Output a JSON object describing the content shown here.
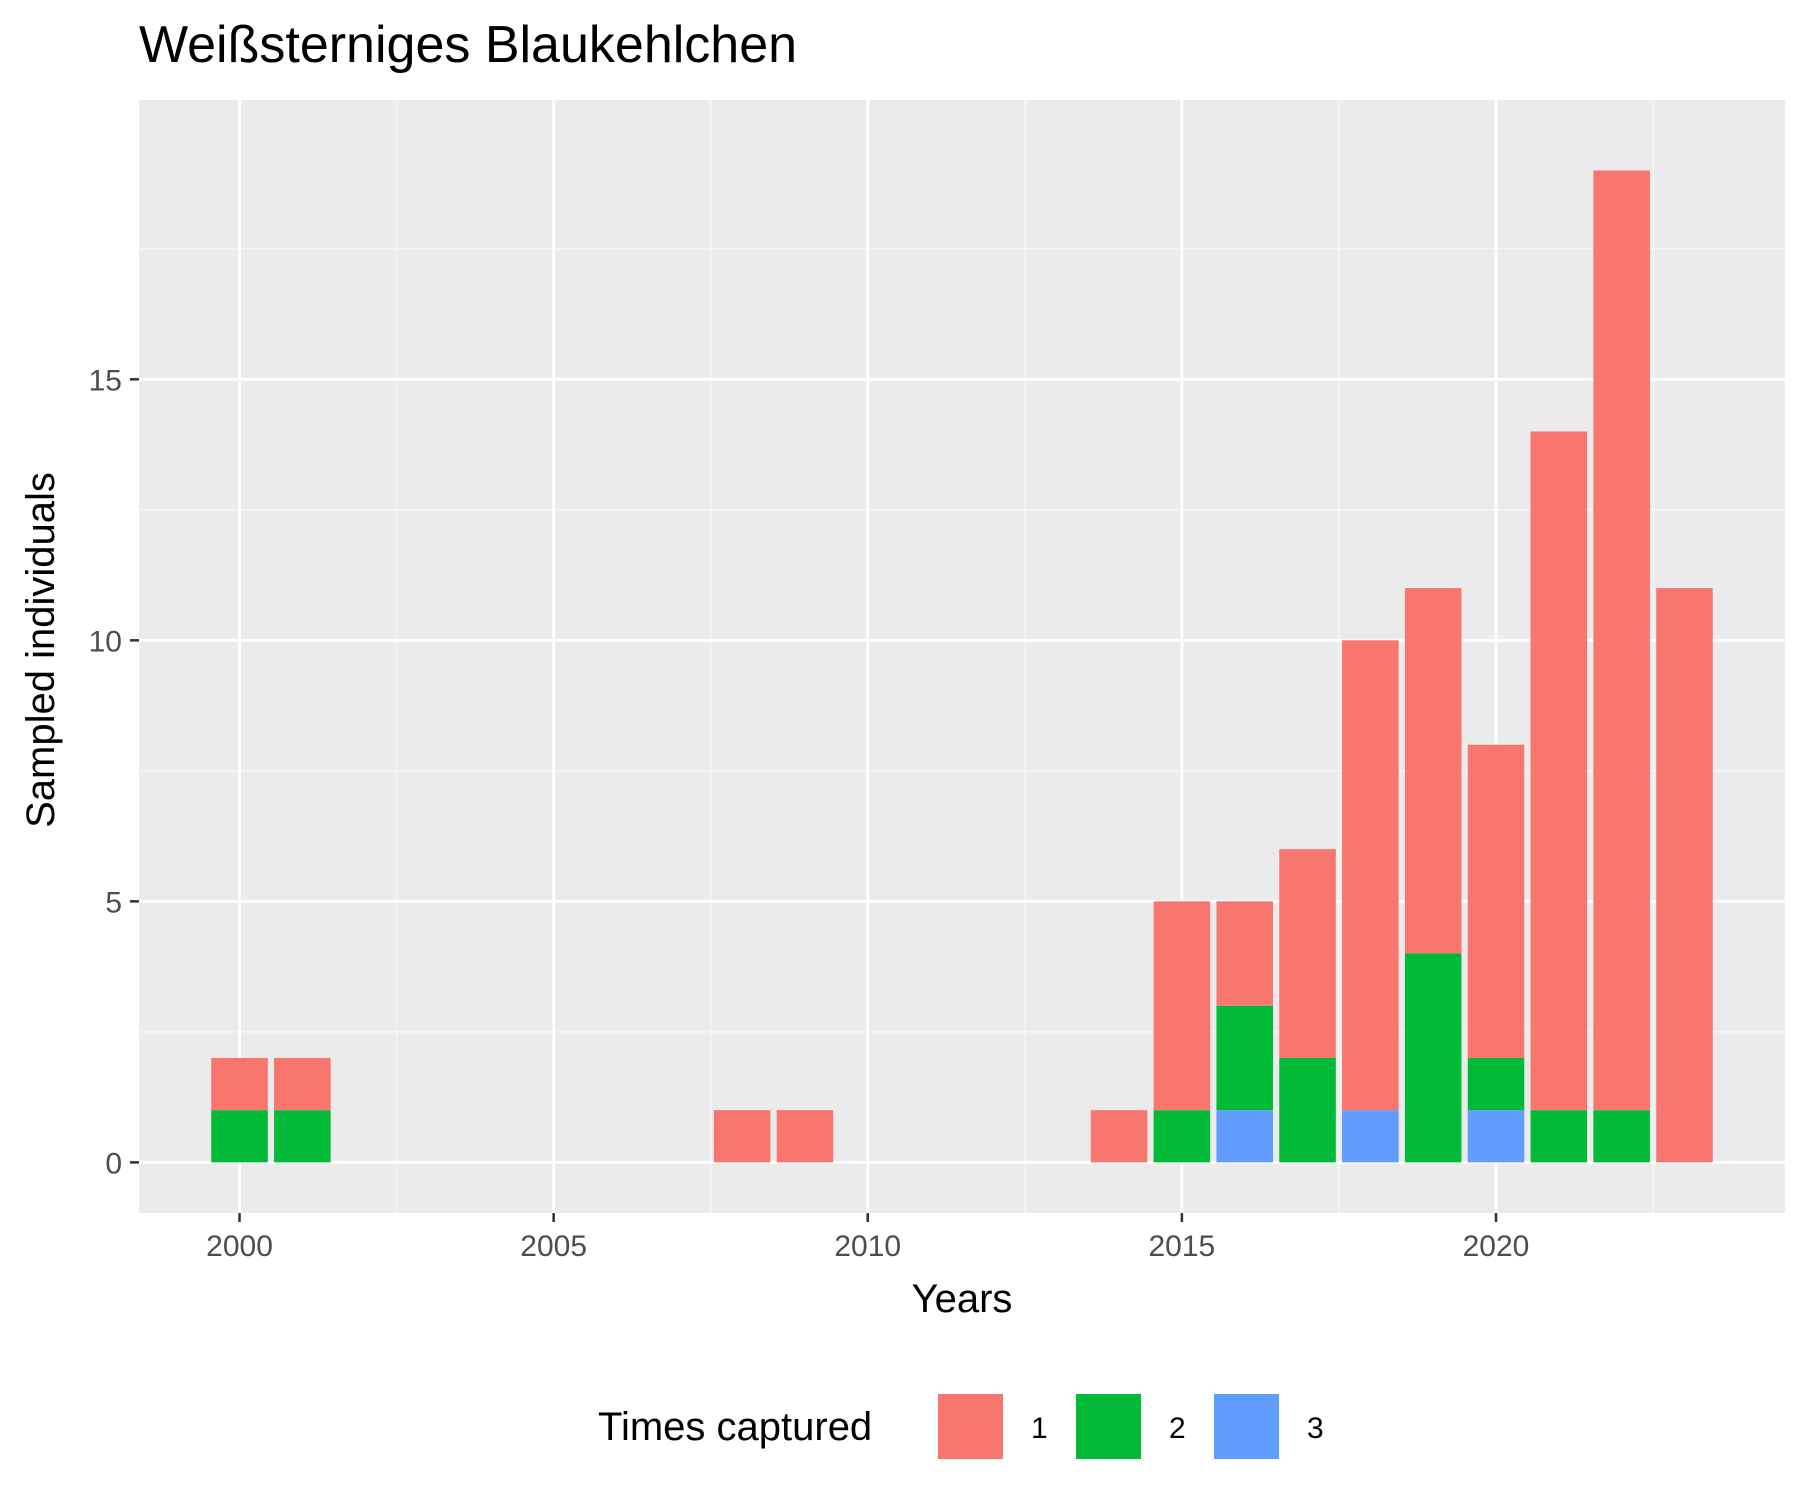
{
  "chart_data": {
    "type": "bar",
    "stacked": true,
    "title": "Weißsterniges Blaukehlchen",
    "xlabel": "Years",
    "ylabel": "Sampled individuals",
    "xlim": [
      1998.4,
      2024.6
    ],
    "ylim": [
      -0.97,
      20.35
    ],
    "x_ticks": [
      2000,
      2005,
      2010,
      2015,
      2020
    ],
    "y_ticks": [
      0,
      5,
      10,
      15
    ],
    "grid": true,
    "legend": {
      "title": "Times captured",
      "position": "bottom",
      "entries": [
        "1",
        "2",
        "3"
      ]
    },
    "x": [
      2000,
      2001,
      2008,
      2009,
      2014,
      2015,
      2016,
      2017,
      2018,
      2019,
      2020,
      2021,
      2022,
      2023
    ],
    "series": [
      {
        "name": "1",
        "color": "#F8766D",
        "values": [
          1,
          1,
          1,
          1,
          1,
          4,
          2,
          4,
          9,
          7,
          6,
          13,
          18,
          11
        ]
      },
      {
        "name": "2",
        "color": "#00BA38",
        "values": [
          1,
          1,
          0,
          0,
          0,
          1,
          2,
          2,
          0,
          4,
          1,
          1,
          1,
          0
        ]
      },
      {
        "name": "3",
        "color": "#619CFF",
        "values": [
          0,
          0,
          0,
          0,
          0,
          0,
          1,
          0,
          1,
          0,
          1,
          0,
          0,
          0
        ]
      }
    ],
    "colors": {
      "panel_background": "#EBEBEB",
      "grid_major": "#FFFFFF",
      "grid_minor": "#F5F5F5"
    }
  }
}
